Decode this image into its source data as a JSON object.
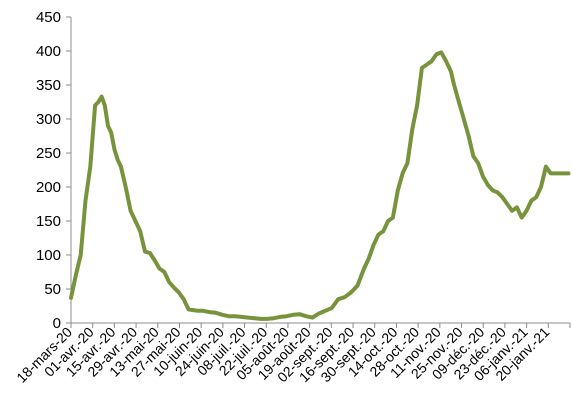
{
  "chart_data": {
    "type": "line",
    "title": "",
    "xlabel": "",
    "ylabel": "",
    "ylim": [
      0,
      450
    ],
    "y_ticks": [
      "0",
      "50",
      "100",
      "150",
      "200",
      "250",
      "300",
      "350",
      "400",
      "450"
    ],
    "x_tick_labels": [
      "18-mars-20",
      "01-avr.-20",
      "15-avr.-20",
      "29-avr.-20",
      "13-mai-20",
      "27-mai-20",
      "10-juin-20",
      "24-juin-20",
      "08-juil.-20",
      "22-juil.-20",
      "05-août-20",
      "19-août-20",
      "02-sept.-20",
      "16-sept.-20",
      "30-sept.-20",
      "14-oct.-20",
      "28-oct.-20",
      "11-nov.-20",
      "25-nov.-20",
      "09-déc.-20",
      "23-déc.-20",
      "06-janv.-21",
      "20-janv.-21"
    ],
    "grid": false,
    "legend": "none",
    "line_color": "#77933c",
    "series": [
      {
        "x": [
          "2020-03-18",
          "2020-03-21",
          "2020-03-24",
          "2020-03-27",
          "2020-03-30",
          "2020-04-02",
          "2020-04-04",
          "2020-04-06",
          "2020-04-08",
          "2020-04-10",
          "2020-04-12",
          "2020-04-14",
          "2020-04-16",
          "2020-04-18",
          "2020-04-21",
          "2020-04-24",
          "2020-04-27",
          "2020-04-30",
          "2020-05-03",
          "2020-05-06",
          "2020-05-09",
          "2020-05-12",
          "2020-05-15",
          "2020-05-18",
          "2020-05-21",
          "2020-05-24",
          "2020-05-27",
          "2020-05-30",
          "2020-06-02",
          "2020-06-05",
          "2020-06-08",
          "2020-06-12",
          "2020-06-16",
          "2020-06-20",
          "2020-06-24",
          "2020-06-28",
          "2020-07-02",
          "2020-07-06",
          "2020-07-10",
          "2020-07-14",
          "2020-07-18",
          "2020-07-22",
          "2020-07-26",
          "2020-07-30",
          "2020-08-03",
          "2020-08-07",
          "2020-08-11",
          "2020-08-15",
          "2020-08-19",
          "2020-08-23",
          "2020-08-27",
          "2020-08-31",
          "2020-09-04",
          "2020-09-08",
          "2020-09-12",
          "2020-09-16",
          "2020-09-19",
          "2020-09-22",
          "2020-09-25",
          "2020-09-28",
          "2020-10-01",
          "2020-10-04",
          "2020-10-07",
          "2020-10-10",
          "2020-10-13",
          "2020-10-16",
          "2020-10-19",
          "2020-10-22",
          "2020-10-25",
          "2020-10-28",
          "2020-10-31",
          "2020-11-03",
          "2020-11-06",
          "2020-11-09",
          "2020-11-11",
          "2020-11-14",
          "2020-11-17",
          "2020-11-20",
          "2020-11-23",
          "2020-11-26",
          "2020-11-29",
          "2020-12-02",
          "2020-12-05",
          "2020-12-08",
          "2020-12-11",
          "2020-12-14",
          "2020-12-17",
          "2020-12-20",
          "2020-12-23",
          "2020-12-26",
          "2020-12-29",
          "2021-01-01",
          "2021-01-04",
          "2021-01-07",
          "2021-01-10",
          "2021-01-13",
          "2021-01-16",
          "2021-01-19",
          "2021-01-21"
        ],
        "values": [
          37,
          70,
          100,
          180,
          230,
          320,
          325,
          333,
          320,
          290,
          280,
          255,
          240,
          230,
          200,
          165,
          150,
          135,
          105,
          103,
          92,
          80,
          75,
          60,
          52,
          45,
          35,
          20,
          19,
          18,
          18,
          16,
          15,
          12,
          10,
          10,
          9,
          8,
          7,
          6,
          6,
          7,
          9,
          10,
          12,
          13,
          10,
          8,
          14,
          18,
          22,
          35,
          38,
          45,
          55,
          80,
          95,
          115,
          130,
          135,
          150,
          155,
          195,
          220,
          235,
          285,
          320,
          375,
          380,
          385,
          395,
          398,
          385,
          370,
          350,
          325,
          300,
          275,
          245,
          235,
          215,
          203,
          195,
          192,
          185,
          175,
          165,
          170,
          155,
          165,
          180,
          185,
          200,
          230,
          220,
          220,
          220,
          220,
          220
        ]
      }
    ]
  }
}
